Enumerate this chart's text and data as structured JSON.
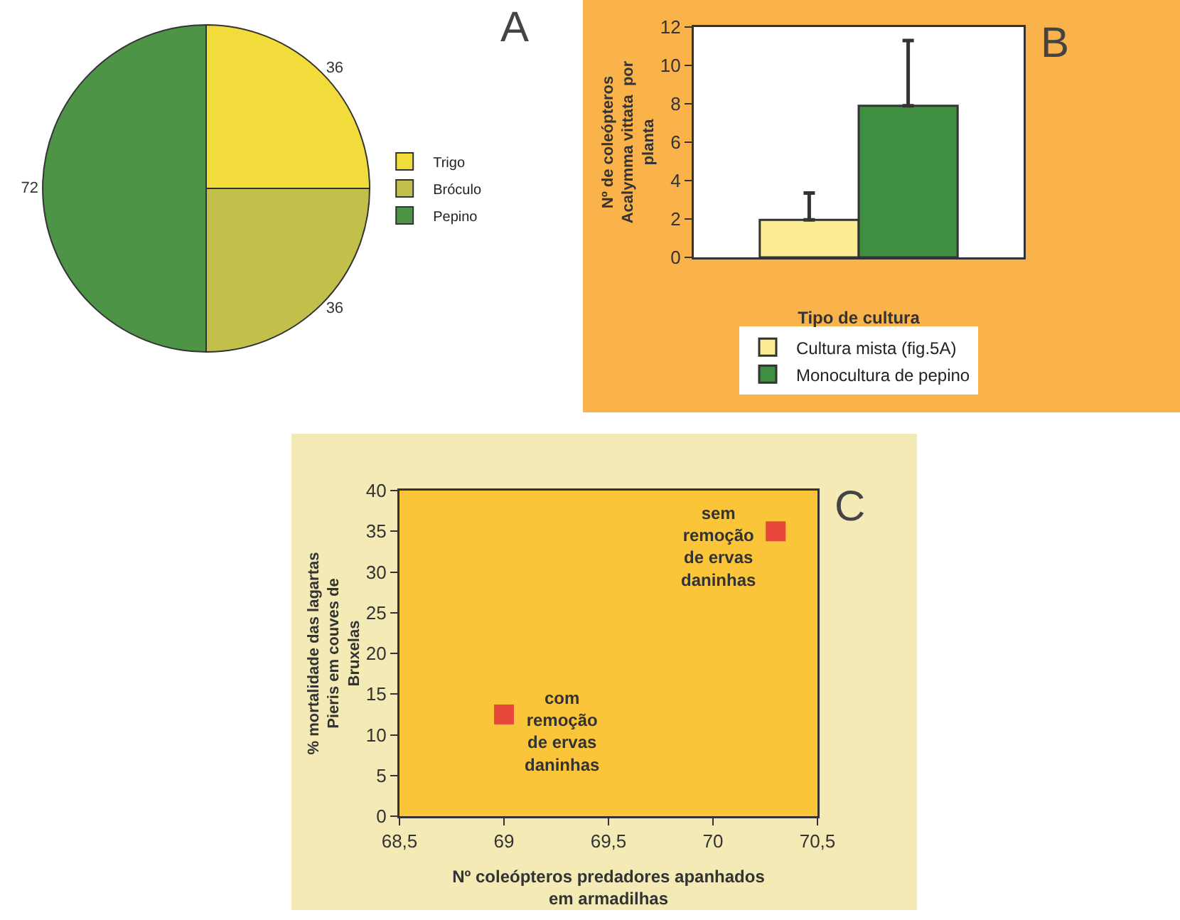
{
  "chart_data": [
    {
      "type": "pie",
      "title": "A",
      "categories": [
        "Trigo",
        "Bróculo",
        "Pepino"
      ],
      "values": [
        36,
        36,
        72
      ],
      "colors": [
        "#f2dc3c",
        "#c2c04a",
        "#4e9446"
      ],
      "data_labels": true,
      "legend": "right"
    },
    {
      "type": "bar",
      "title": "B",
      "xlabel": "Tipo de cultura",
      "ylabel": "Nº de coleópteros\nAcalymma vittata  por\nplanta",
      "categories": [
        null
      ],
      "ylim": [
        0,
        12
      ],
      "yticks": [
        0,
        2,
        4,
        6,
        8,
        10,
        12
      ],
      "grid": false,
      "legend": "bottom",
      "series": [
        {
          "name": "Cultura mista (fig.5A)",
          "color": "#fbeb93",
          "values": [
            1.95
          ],
          "errors": [
            [
              1.95,
              3.35
            ]
          ]
        },
        {
          "name": "Monocultura de pepino",
          "color": "#3f8f42",
          "values": [
            7.9
          ],
          "errors": [
            [
              7.9,
              11.3
            ]
          ]
        }
      ]
    },
    {
      "type": "scatter",
      "title": "C",
      "xlabel": "Nº coleópteros predadores apanhados\nem armadilhas",
      "ylabel": "% mortalidade das lagartas\nPieris em couves de\nBruxelas",
      "x": [
        69,
        70.3
      ],
      "values": [
        12.5,
        35
      ],
      "color": "#e8483c",
      "marker": "square",
      "xlim": [
        68.5,
        70.5
      ],
      "xticks": [
        {
          "value": 68.5,
          "label": "68,5"
        },
        69,
        {
          "value": 69.5,
          "label": "69,5"
        },
        70,
        {
          "value": 70.5,
          "label": "70,5"
        }
      ],
      "ylim": [
        0,
        40
      ],
      "yticks": [
        0,
        5,
        10,
        15,
        20,
        25,
        30,
        35,
        40
      ],
      "grid": false,
      "legend": false,
      "annotations": [
        "com\nremoção\nde ervas\ndaninhas",
        "sem\nremoção\nde ervas\ndaninhas"
      ]
    }
  ]
}
